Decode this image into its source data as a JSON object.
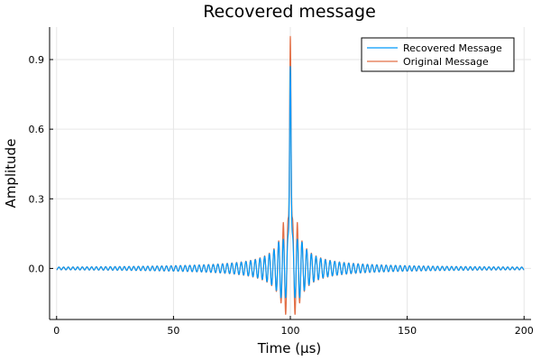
{
  "chart_data": {
    "type": "line",
    "title": "Recovered message",
    "xlabel": "Time (µs)",
    "ylabel": "Amplitude",
    "xlim": [
      -3,
      203
    ],
    "ylim": [
      -0.22,
      1.04
    ],
    "xticks": [
      0,
      50,
      100,
      150,
      200
    ],
    "xtick_labels": [
      "0",
      "50",
      "100",
      "150",
      "200"
    ],
    "yticks": [
      0.0,
      0.3,
      0.6,
      0.9
    ],
    "ytick_labels": [
      "0.0",
      "0.3",
      "0.6",
      "0.9"
    ],
    "grid": true,
    "legend_position": "top-right",
    "signal": {
      "x_start": 0,
      "x_end": 200,
      "center": 100,
      "oscillation_period": 2,
      "description_of_form": "sinc-like pulse centered at 100"
    },
    "series": [
      {
        "name": "Recovered Message",
        "color": "#009AFA",
        "peak": 0.87,
        "min": -0.14,
        "envelope_width": 4.5
      },
      {
        "name": "Original Message",
        "color": "#E26F46",
        "peak": 1.0,
        "min": -0.22,
        "envelope_width": 3.0
      }
    ]
  }
}
